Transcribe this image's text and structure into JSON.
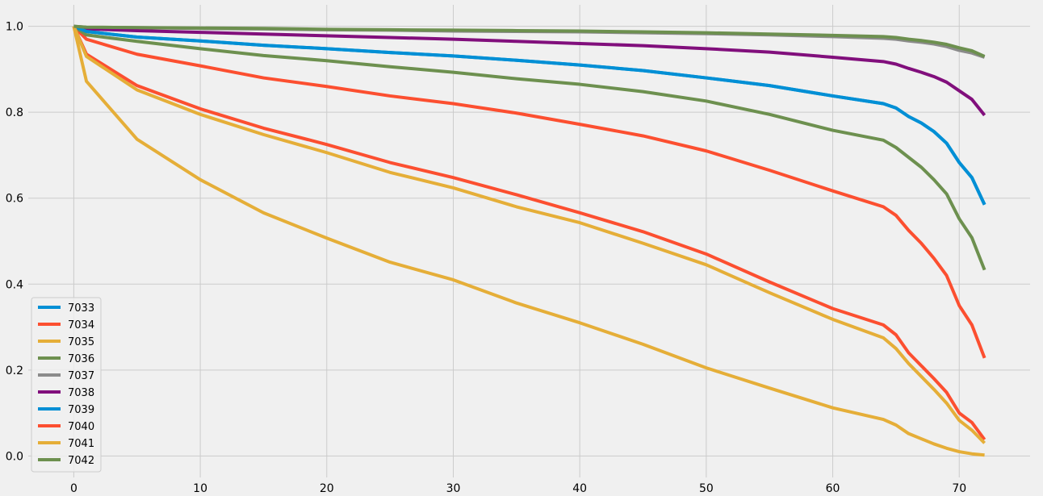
{
  "chart_data": {
    "type": "line",
    "title": "",
    "xlabel": "",
    "ylabel": "",
    "xlim": [
      -3.6,
      75.6
    ],
    "ylim": [
      -0.05,
      1.05
    ],
    "xticks": [
      0,
      10,
      20,
      30,
      40,
      50,
      60,
      70
    ],
    "yticks": [
      0.0,
      0.2,
      0.4,
      0.6,
      0.8,
      1.0
    ],
    "xtick_labels": [
      "0",
      "10",
      "20",
      "30",
      "40",
      "50",
      "60",
      "70"
    ],
    "ytick_labels": [
      "0.0",
      "0.2",
      "0.4",
      "0.6",
      "0.8",
      "1.0"
    ],
    "grid": true,
    "legend_position": "lower-left",
    "x": [
      0,
      1,
      5,
      10,
      15,
      20,
      25,
      30,
      35,
      40,
      45,
      50,
      55,
      60,
      64,
      65,
      66,
      67,
      68,
      69,
      70,
      71,
      72
    ],
    "series": [
      {
        "name": "7033",
        "color": "#008fd5",
        "values": [
          1.0,
          0.988,
          0.975,
          0.966,
          0.956,
          0.948,
          0.939,
          0.931,
          0.921,
          0.91,
          0.897,
          0.88,
          0.862,
          0.838,
          0.82,
          0.81,
          0.79,
          0.775,
          0.755,
          0.728,
          0.683,
          0.648,
          0.585
        ]
      },
      {
        "name": "7034",
        "color": "#fc4f30",
        "values": [
          1.0,
          0.97,
          0.935,
          0.908,
          0.88,
          0.86,
          0.838,
          0.82,
          0.798,
          0.772,
          0.745,
          0.71,
          0.665,
          0.617,
          0.58,
          0.56,
          0.525,
          0.495,
          0.46,
          0.42,
          0.35,
          0.305,
          0.228
        ]
      },
      {
        "name": "7035",
        "color": "#e5ae38",
        "values": [
          1.0,
          0.872,
          0.737,
          0.643,
          0.566,
          0.507,
          0.451,
          0.41,
          0.356,
          0.31,
          0.26,
          0.205,
          0.158,
          0.112,
          0.085,
          0.072,
          0.052,
          0.04,
          0.028,
          0.018,
          0.01,
          0.005,
          0.002
        ]
      },
      {
        "name": "7036",
        "color": "#6d904f",
        "values": [
          1.0,
          0.98,
          0.965,
          0.948,
          0.932,
          0.92,
          0.906,
          0.893,
          0.878,
          0.865,
          0.848,
          0.826,
          0.795,
          0.758,
          0.735,
          0.718,
          0.695,
          0.672,
          0.643,
          0.61,
          0.552,
          0.508,
          0.433
        ]
      },
      {
        "name": "7037",
        "color": "#8b8b8b",
        "values": [
          1.0,
          0.998,
          0.997,
          0.995,
          0.994,
          0.992,
          0.991,
          0.989,
          0.988,
          0.987,
          0.985,
          0.983,
          0.98,
          0.976,
          0.972,
          0.97,
          0.966,
          0.963,
          0.959,
          0.953,
          0.944,
          0.938,
          0.928
        ]
      },
      {
        "name": "7038",
        "color": "#810f7c",
        "values": [
          1.0,
          0.994,
          0.99,
          0.986,
          0.982,
          0.978,
          0.974,
          0.97,
          0.965,
          0.96,
          0.955,
          0.948,
          0.94,
          0.928,
          0.918,
          0.912,
          0.902,
          0.893,
          0.883,
          0.87,
          0.85,
          0.83,
          0.793
        ]
      },
      {
        "name": "7039",
        "color": "#008fd5",
        "values": [
          1.0,
          0.988,
          0.975,
          0.966,
          0.956,
          0.948,
          0.939,
          0.931,
          0.921,
          0.91,
          0.897,
          0.88,
          0.862,
          0.838,
          0.82,
          0.81,
          0.79,
          0.775,
          0.755,
          0.728,
          0.683,
          0.648,
          0.585
        ]
      },
      {
        "name": "7040",
        "color": "#fc4f30",
        "values": [
          1.0,
          0.935,
          0.862,
          0.808,
          0.763,
          0.725,
          0.683,
          0.648,
          0.608,
          0.566,
          0.522,
          0.47,
          0.405,
          0.343,
          0.305,
          0.282,
          0.24,
          0.21,
          0.18,
          0.148,
          0.1,
          0.078,
          0.038
        ]
      },
      {
        "name": "7041",
        "color": "#e5ae38",
        "values": [
          1.0,
          0.93,
          0.852,
          0.795,
          0.748,
          0.706,
          0.66,
          0.624,
          0.58,
          0.543,
          0.495,
          0.445,
          0.38,
          0.318,
          0.275,
          0.25,
          0.215,
          0.185,
          0.155,
          0.123,
          0.083,
          0.06,
          0.03
        ]
      },
      {
        "name": "7042",
        "color": "#6d904f",
        "values": [
          1.0,
          0.998,
          0.997,
          0.996,
          0.995,
          0.993,
          0.992,
          0.991,
          0.99,
          0.989,
          0.987,
          0.985,
          0.982,
          0.979,
          0.976,
          0.974,
          0.97,
          0.967,
          0.963,
          0.958,
          0.95,
          0.943,
          0.93
        ]
      }
    ]
  }
}
